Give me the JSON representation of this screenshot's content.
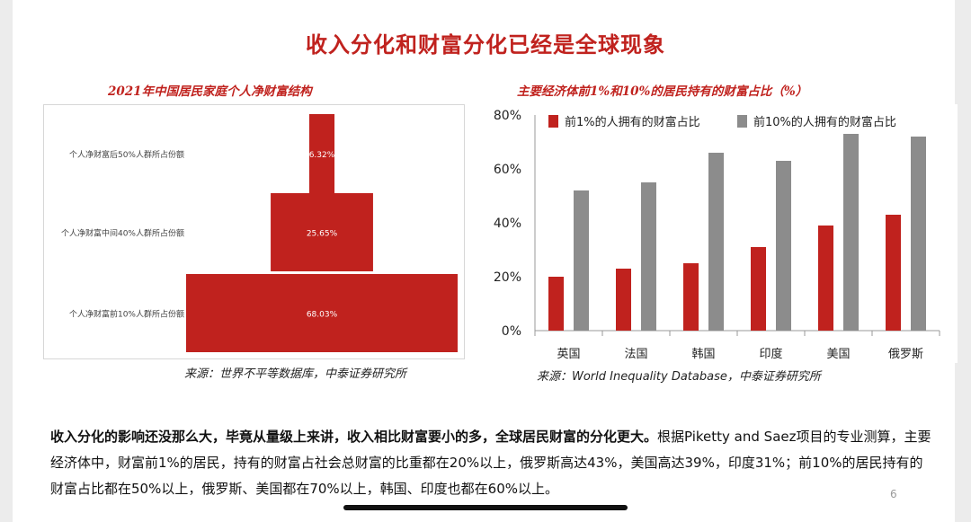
{
  "title": "收入分化和财富分化已经是全球现象",
  "left_panel": {
    "subtitle": "2021年中国居民家庭个人净财富结构",
    "source": "来源：世界不平等数据库，中泰证券研究所"
  },
  "right_panel": {
    "subtitle": "主要经济体前1%和10%的居民持有的财富占比（%）",
    "source": "来源：World Inequality Database，中泰证券研究所"
  },
  "paragraph": {
    "lead": "收入分化的影响还没那么大，毕竟从量级上来讲，收入相比财富要小的多，全球居民财富的分化更大。",
    "rest": "根据Piketty and Saez项目的专业测算，主要经济体中，财富前1%的居民，持有的财富占社会总财富的比重都在20%以上，俄罗斯高达43%，美国高达39%，印度31%；前10%的居民持有的财富占比都在50%以上，俄罗斯、美国都在70%以上，韩国、印度也都在60%以上。"
  },
  "page_number": "6",
  "colors": {
    "accent": "#c0221e",
    "series_top1": "#c0221e",
    "series_top10": "#8c8c8c"
  },
  "chart_data": [
    {
      "type": "bar",
      "orientation": "horizontal",
      "categories": [
        "个人净财富后50%人群所占份额",
        "个人净财富中间40%人群所占份额",
        "个人净财富前10%人群所占份额"
      ],
      "values": [
        6.32,
        25.65,
        68.03
      ],
      "data_labels": [
        "6.32%",
        "25.65%",
        "68.03%"
      ],
      "title": "2021年中国居民家庭个人净财富结构",
      "grid": false,
      "legend": "none"
    },
    {
      "type": "bar",
      "categories": [
        "英国",
        "法国",
        "韩国",
        "印度",
        "美国",
        "俄罗斯"
      ],
      "series": [
        {
          "name": "前1%的人拥有的财富占比",
          "values": [
            20,
            23,
            25,
            31,
            39,
            43
          ]
        },
        {
          "name": "前10%的人拥有的财富占比",
          "values": [
            52,
            55,
            66,
            63,
            73,
            72
          ]
        }
      ],
      "ylim": [
        0,
        80
      ],
      "yticks": [
        "0%",
        "20%",
        "40%",
        "60%",
        "80%"
      ],
      "title": "主要经济体前1%和10%的居民持有的财富占比（%）",
      "grid": false,
      "legend": "top"
    }
  ]
}
